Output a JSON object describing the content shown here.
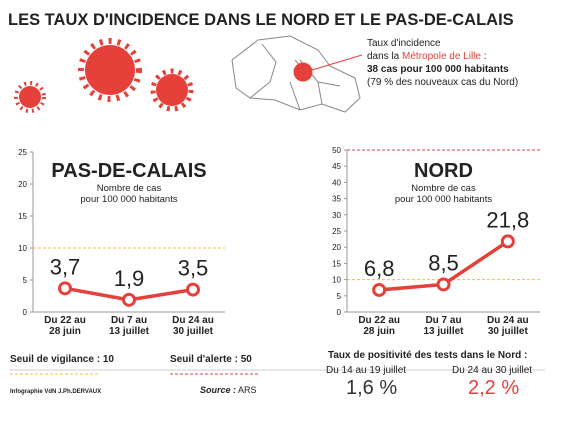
{
  "header": {
    "title": "LES TAUX D'INCIDENCE DANS LE NORD ET LE PAS-DE-CALAIS"
  },
  "map_note": {
    "lines": [
      "Taux d'incidence"
    ],
    "line2_before": "dans la ",
    "line2_highlight": "Métropole de Lille",
    "line2_after": " :",
    "bold_line": "38 cas pour 100 000 habitants",
    "last_line": "(79 % des nouveaux cas du Nord)"
  },
  "chart_data": [
    {
      "type": "line",
      "title": "PAS-DE-CALAIS",
      "subtitle": [
        "Nombre de cas",
        "pour 100 000 habitants"
      ],
      "categories": [
        [
          "Du 22 au",
          "28 juin"
        ],
        [
          "Du 7 au",
          "13 juillet"
        ],
        [
          "Du 24 au",
          "30 juillet"
        ]
      ],
      "values": [
        3.7,
        1.9,
        3.5
      ],
      "value_labels": [
        "3,7",
        "1,9",
        "3,5"
      ],
      "color": "#e5403a",
      "ylim": [
        0,
        25
      ],
      "yticks": [
        0,
        5,
        10,
        15,
        20,
        25
      ]
    },
    {
      "type": "line",
      "title": "NORD",
      "subtitle": [
        "Nombre de cas",
        "pour 100 000 habitants"
      ],
      "categories": [
        [
          "Du 22 au",
          "28 juin"
        ],
        [
          "Du 7 au",
          "13 juillet"
        ],
        [
          "Du 24 au",
          "30 juillet"
        ]
      ],
      "values": [
        6.8,
        8.5,
        21.8
      ],
      "value_labels": [
        "6,8",
        "8,5",
        "21,8"
      ],
      "color": "#e5403a",
      "ylim": [
        0,
        50
      ],
      "yticks": [
        0,
        5,
        10,
        15,
        20,
        25,
        30,
        35,
        40,
        45,
        50
      ]
    }
  ],
  "thresholds": [
    {
      "name": "Seuil de vigilance : ",
      "value": 10,
      "color": "#f2c12e"
    },
    {
      "name": "Seuil d'alerte : ",
      "value": 50,
      "color": "#e5403a"
    }
  ],
  "positivity": {
    "title": "Taux de positivité des tests dans le Nord :",
    "items": [
      {
        "period": "Du 14 au 19 juillet",
        "value": 1.6,
        "label": "1,6 %",
        "color": "#333333"
      },
      {
        "period": "Du 24 au 30 juillet",
        "value": 2.2,
        "label": "2,2 %",
        "color": "#e5403a"
      }
    ]
  },
  "footer": {
    "credit": "Infographie VdN J.Ph.DERVAUX",
    "source_label": "Source :",
    "source": " ARS"
  }
}
